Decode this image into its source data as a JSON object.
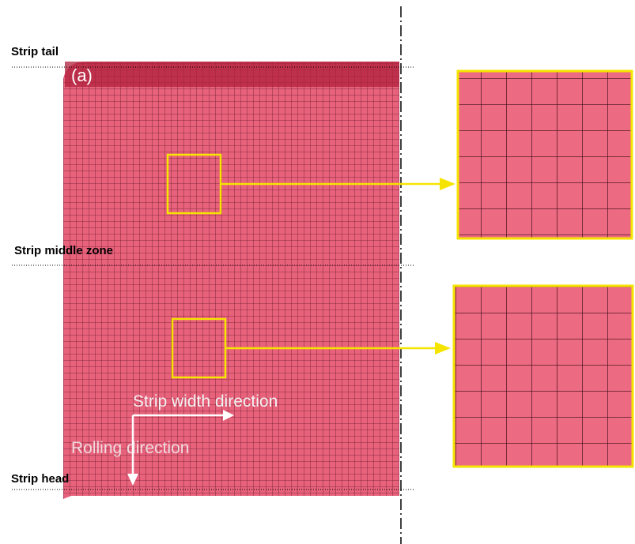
{
  "labels": {
    "tail": "Strip tail",
    "panel": "(a)",
    "middle": "Strip middle zone",
    "head": "Strip head",
    "width_direction": "Strip width direction",
    "rolling_direction": "Rolling direction"
  }
}
